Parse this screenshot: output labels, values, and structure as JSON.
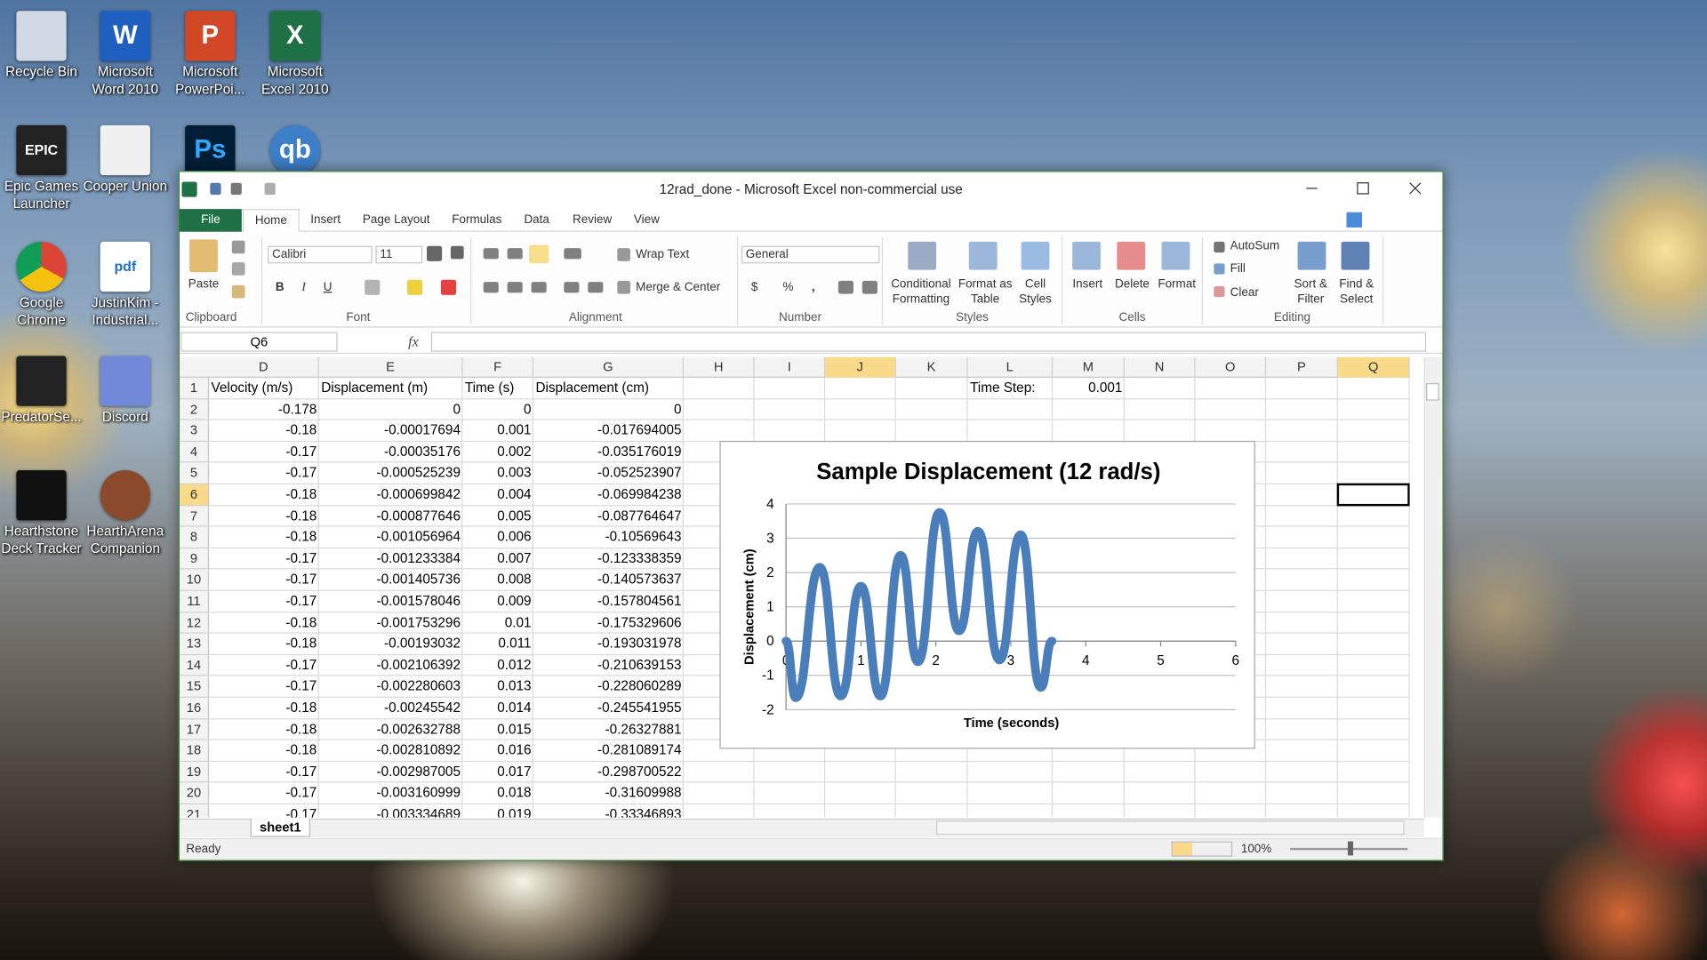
{
  "desktop": {
    "icons": [
      {
        "label": "Recycle Bin"
      },
      {
        "label": "Microsoft Word 2010",
        "glyph": "W"
      },
      {
        "label": "Microsoft PowerPoi...",
        "glyph": "P"
      },
      {
        "label": "Microsoft Excel 2010",
        "glyph": "X"
      },
      {
        "label": "Epic Games Launcher",
        "glyph": "EPIC"
      },
      {
        "label": "Cooper Union"
      },
      {
        "glyph": "Ps"
      },
      {
        "glyph": "qb"
      },
      {
        "label": "Google Chrome"
      },
      {
        "label": "JustinKim - Industrial...",
        "glyph": "pdf"
      },
      {
        "label": "PredatorSe..."
      },
      {
        "label": "Discord"
      },
      {
        "label": "Hearthstone Deck Tracker"
      },
      {
        "label": "HearthArena Companion"
      }
    ]
  },
  "window": {
    "title": "12rad_done - Microsoft Excel non-commercial use",
    "tabs": [
      "File",
      "Home",
      "Insert",
      "Page Layout",
      "Formulas",
      "Data",
      "Review",
      "View"
    ],
    "ribbon": {
      "groups": [
        "Clipboard",
        "Font",
        "Alignment",
        "Number",
        "Styles",
        "Cells",
        "Editing"
      ],
      "paste": "Paste",
      "font_name": "Calibri",
      "font_size": "11",
      "bold": "B",
      "italic": "I",
      "underline": "U",
      "wrap_text": "Wrap Text",
      "merge_center": "Merge & Center",
      "number_format": "General",
      "currency": "$",
      "percent": "%",
      "comma": ",",
      "conditional_formatting": "Conditional Formatting",
      "format_as_table": "Format as Table",
      "cell_styles": "Cell Styles",
      "insert": "Insert",
      "delete": "Delete",
      "format": "Format",
      "autosum": "AutoSum",
      "fill": "Fill",
      "clear": "Clear",
      "sort_filter": "Sort & Filter",
      "find_select": "Find & Select"
    },
    "name_box": "Q6",
    "fx": "fx",
    "sheet": {
      "columns": [
        "D",
        "E",
        "F",
        "G",
        "H",
        "I",
        "J",
        "K",
        "L",
        "M",
        "N",
        "O",
        "P",
        "Q"
      ],
      "rows": [
        "1",
        "2",
        "3",
        "4",
        "5",
        "6",
        "7",
        "8",
        "9",
        "10",
        "11",
        "12",
        "13",
        "14",
        "15",
        "16",
        "17",
        "18",
        "19",
        "20",
        "21"
      ],
      "header": [
        "Velocity (m/s)",
        "Displacement (m)",
        "Time (s)",
        "Displacement (cm)"
      ],
      "time_step_label": "Time Step:",
      "time_step": "0.001",
      "data": [
        [
          "-0.178",
          "0",
          "0",
          "0"
        ],
        [
          "-0.18",
          "-0.00017694",
          "0.001",
          "-0.017694005"
        ],
        [
          "-0.17",
          "-0.00035176",
          "0.002",
          "-0.035176019"
        ],
        [
          "-0.17",
          "-0.000525239",
          "0.003",
          "-0.052523907"
        ],
        [
          "-0.18",
          "-0.000699842",
          "0.004",
          "-0.069984238"
        ],
        [
          "-0.18",
          "-0.000877646",
          "0.005",
          "-0.087764647"
        ],
        [
          "-0.18",
          "-0.001056964",
          "0.006",
          "-0.10569643"
        ],
        [
          "-0.17",
          "-0.001233384",
          "0.007",
          "-0.123338359"
        ],
        [
          "-0.17",
          "-0.001405736",
          "0.008",
          "-0.140573637"
        ],
        [
          "-0.17",
          "-0.001578046",
          "0.009",
          "-0.157804561"
        ],
        [
          "-0.18",
          "-0.001753296",
          "0.01",
          "-0.175329606"
        ],
        [
          "-0.18",
          "-0.00193032",
          "0.011",
          "-0.193031978"
        ],
        [
          "-0.17",
          "-0.002106392",
          "0.012",
          "-0.210639153"
        ],
        [
          "-0.17",
          "-0.002280603",
          "0.013",
          "-0.228060289"
        ],
        [
          "-0.18",
          "-0.00245542",
          "0.014",
          "-0.245541955"
        ],
        [
          "-0.18",
          "-0.002632788",
          "0.015",
          "-0.26327881"
        ],
        [
          "-0.18",
          "-0.002810892",
          "0.016",
          "-0.281089174"
        ],
        [
          "-0.17",
          "-0.002987005",
          "0.017",
          "-0.298700522"
        ],
        [
          "-0.17",
          "-0.003160999",
          "0.018",
          "-0.31609988"
        ],
        [
          "-0.17",
          "-0.003334689",
          "0.019",
          "-0.33346893"
        ]
      ]
    },
    "sheet_tab": "sheet1",
    "status": "Ready",
    "zoom": "100%"
  },
  "chart_data": {
    "type": "line",
    "title": "Sample Displacement (12 rad/s)",
    "xlabel": "Time (seconds)",
    "ylabel": "Displacement (cm)",
    "x": [
      0,
      0.13,
      0.45,
      0.73,
      1.0,
      1.26,
      1.53,
      1.76,
      2.05,
      2.31,
      2.56,
      2.85,
      3.13,
      3.4,
      3.55
    ],
    "values": [
      0,
      -1.65,
      2.15,
      -1.6,
      1.6,
      -1.6,
      2.5,
      -0.6,
      3.75,
      0.3,
      3.2,
      -0.55,
      3.1,
      -1.35,
      0
    ],
    "color": "#4a7ebb",
    "xlim": [
      0,
      6
    ],
    "xticks": [
      0,
      1,
      2,
      3,
      4,
      5,
      6
    ],
    "ylim": [
      -2,
      4
    ],
    "yticks": [
      -2,
      -1,
      0,
      1,
      2,
      3,
      4
    ],
    "grid": true
  }
}
